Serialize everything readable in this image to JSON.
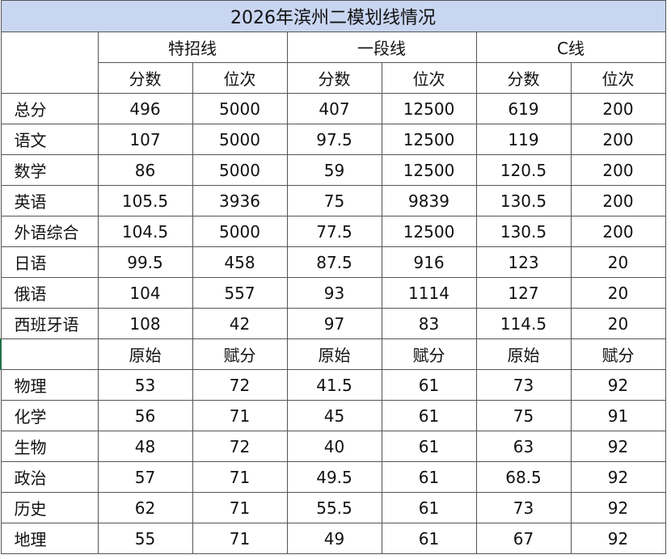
{
  "title": "2026年滨州二模划线情况",
  "groups": [
    "特招线",
    "一段线",
    "C线"
  ],
  "sub_headers": [
    "分数",
    "位次",
    "分数",
    "位次",
    "分数",
    "位次"
  ],
  "rows": [
    {
      "label": "总分",
      "values": [
        496,
        5000,
        407,
        12500,
        619,
        200
      ]
    },
    {
      "label": "语文",
      "values": [
        107,
        5000,
        97.5,
        12500,
        119,
        200
      ]
    },
    {
      "label": "数学",
      "values": [
        86,
        5000,
        59,
        12500,
        120.5,
        200
      ]
    },
    {
      "label": "英语",
      "values": [
        105.5,
        3936,
        75,
        9839,
        130.5,
        200
      ]
    },
    {
      "label": "外语综合",
      "values": [
        104.5,
        5000,
        77.5,
        12500,
        130.5,
        200
      ]
    },
    {
      "label": "日语",
      "values": [
        99.5,
        458,
        87.5,
        916,
        123,
        20
      ]
    },
    {
      "label": "俄语",
      "values": [
        104,
        557,
        93,
        1114,
        127,
        20
      ]
    },
    {
      "label": "西班牙语",
      "values": [
        108,
        42,
        97,
        83,
        114.5,
        20
      ]
    }
  ],
  "subject_headers": [
    "原始",
    "赋分",
    "原始",
    "赋分",
    "原始",
    "赋分"
  ],
  "subject_rows": [
    {
      "label": "物理",
      "values": [
        53,
        72,
        41.5,
        61,
        73,
        92
      ]
    },
    {
      "label": "化学",
      "values": [
        56,
        71,
        45,
        61,
        75,
        91
      ]
    },
    {
      "label": "生物",
      "values": [
        48,
        72,
        40,
        61,
        63,
        92
      ]
    },
    {
      "label": "政治",
      "values": [
        57,
        71,
        49.5,
        61,
        68.5,
        92
      ]
    },
    {
      "label": "历史",
      "values": [
        62,
        71,
        55.5,
        61,
        73,
        92
      ]
    },
    {
      "label": "地理",
      "values": [
        55,
        71,
        49,
        61,
        67,
        92
      ]
    }
  ]
}
